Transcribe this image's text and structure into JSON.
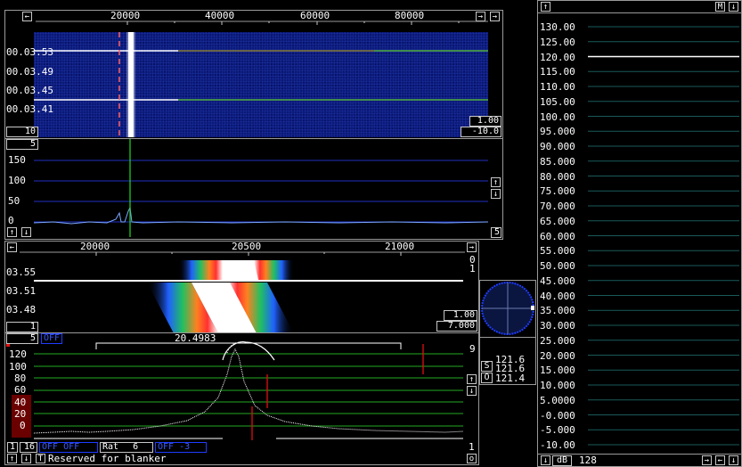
{
  "colors": {
    "water_bg": "#0a1a70",
    "hline": "#2030c0",
    "green_line": "#22aa22",
    "red": "#e01010",
    "frame": "#9a9a9a"
  },
  "main_freq": {
    "ticks": [
      "20000",
      "40000",
      "60000",
      "80000"
    ],
    "left_arrow": "←",
    "right_arrow": "→",
    "right_arrow2": "→"
  },
  "main_water": {
    "times": [
      "00.03.53",
      "00.03.49",
      "00.03.45",
      "00.03.41"
    ],
    "box_avg": "10",
    "box_gain": "1.00",
    "box_zero": "-10.0"
  },
  "main_spec": {
    "box_top": "5",
    "y_ticks": [
      "150",
      "100",
      "50",
      "0"
    ],
    "box_bottom": "5",
    "up": "↑",
    "down": "↓"
  },
  "hires_freq": {
    "ticks": [
      "20000",
      "20500",
      "21000"
    ],
    "left_arrow": "←",
    "right_arrow": "→"
  },
  "hires_water": {
    "times": [
      "03.55",
      "03.51",
      "03.48"
    ],
    "right_top": "0",
    "right_mid": "1",
    "box_left": "1",
    "box_gain": "1.00",
    "box_zero": "7.000"
  },
  "hires_spec": {
    "box_left": "5",
    "off_label": "OFF",
    "freq_readout": "20.4983",
    "y_ticks": [
      "120",
      "100",
      "80",
      "60",
      "40",
      "20",
      "0"
    ],
    "right_top": "9",
    "right_bottom": "1",
    "box_16": "16",
    "box_1": "1",
    "rat_label": "Rat",
    "rat_value": "6",
    "blue_a": "OFF OFF",
    "blue_b": "OFF -3",
    "status_text": "Reserved for blanker",
    "t_btn": "T",
    "o_btn": "o"
  },
  "meter": {
    "s_label": "S",
    "o_label": "O",
    "v1": "121.6",
    "v2": "121.6",
    "v3": "121.4"
  },
  "level": {
    "m_btn": "M",
    "ticks": [
      "130.00",
      "125.00",
      "120.00",
      "115.00",
      "110.00",
      "105.00",
      "100.00",
      "95.000",
      "90.000",
      "85.000",
      "80.000",
      "75.000",
      "70.000",
      "65.000",
      "60.000",
      "55.000",
      "50.000",
      "45.000",
      "40.000",
      "35.000",
      "30.000",
      "25.000",
      "20.000",
      "15.000",
      "10.000",
      "5.0000",
      "-0.000",
      "-5.000",
      "-10.00"
    ],
    "db_label": "dB",
    "db_value": "128"
  }
}
